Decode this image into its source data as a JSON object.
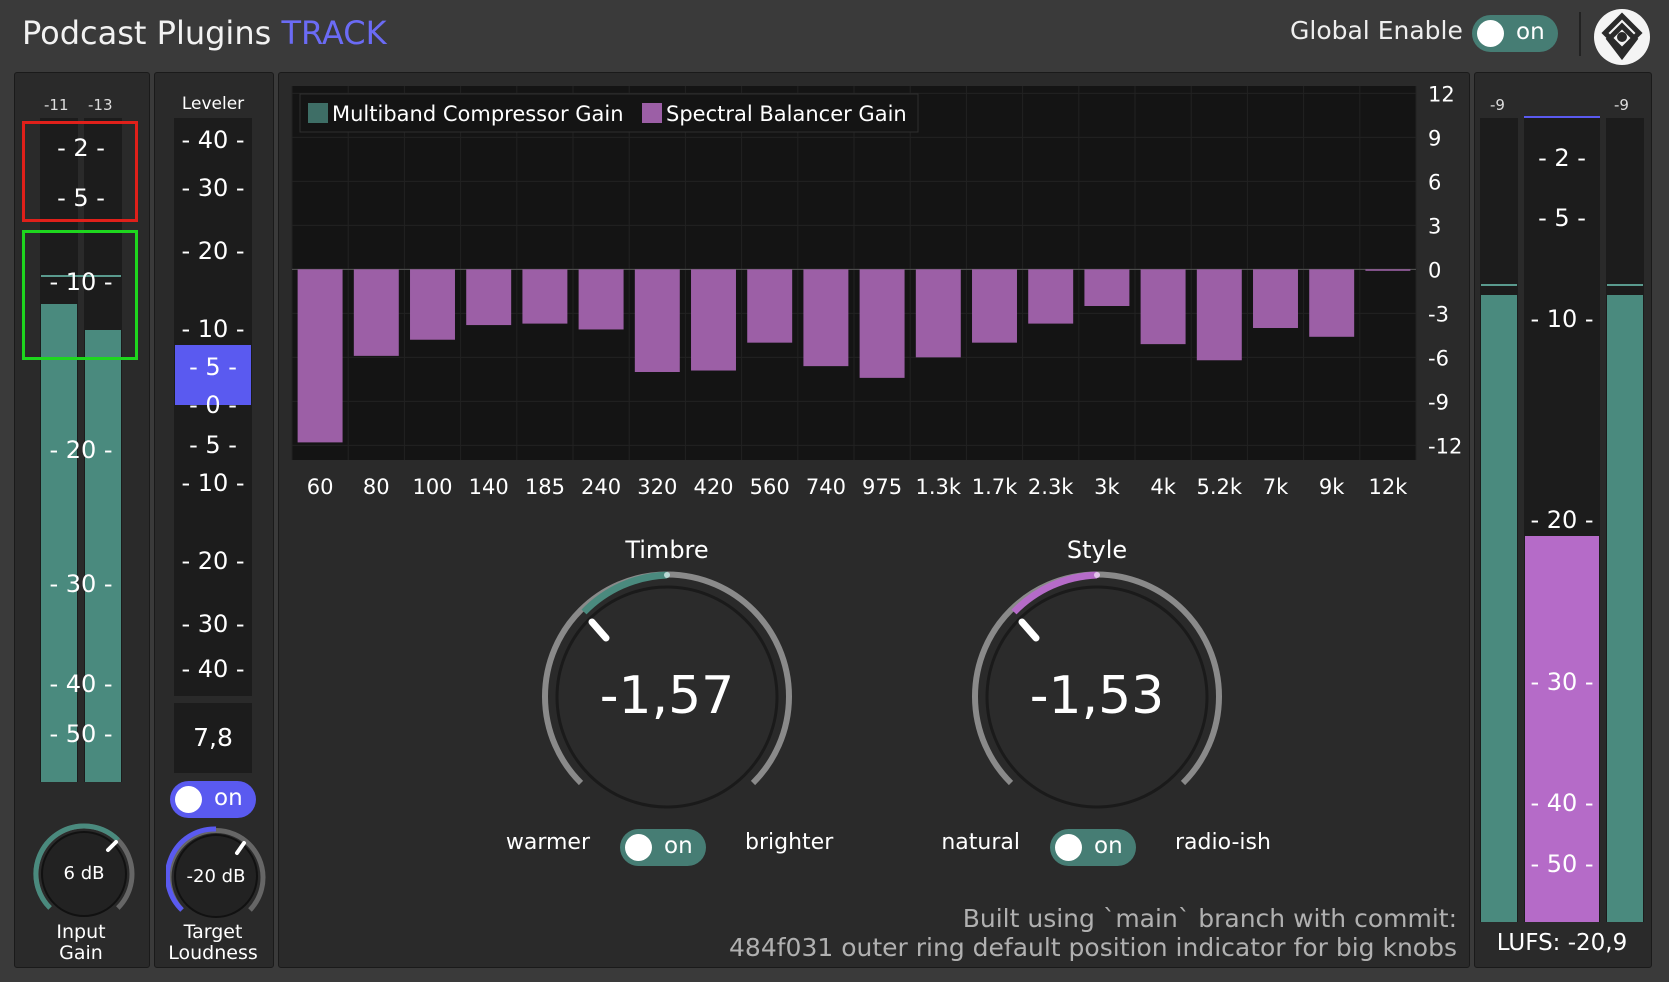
{
  "header": {
    "title_main": "Podcast Plugins ",
    "title_accent": "TRACK",
    "global_enable_label": "Global Enable",
    "global_enable_state": "on",
    "logo_icon": "podcast-plugins-logo-icon"
  },
  "input_meter": {
    "peak_left": "-11",
    "peak_right": "-13",
    "scale": [
      "- 2 -",
      "- 5 -",
      "- 10 -",
      "- 20 -",
      "- 30 -",
      "- 40 -",
      "- 50 -"
    ],
    "level_left": 0.72,
    "level_right": 0.68,
    "knob_value": "6 dB",
    "knob_label_1": "Input",
    "knob_label_2": "Gain"
  },
  "leveler": {
    "title": "Leveler",
    "scale": [
      "- 40 -",
      "- 30 -",
      "- 20 -",
      "- 10 -",
      "- 5 -",
      "- 0 -",
      "- 5 -",
      "- 10 -",
      "- 20 -",
      "- 30 -",
      "- 40 -"
    ],
    "value": "7,8",
    "toggle": "on",
    "knob_value": "-20 dB",
    "knob_label_1": "Target",
    "knob_label_2": "Loudness"
  },
  "chart_data": {
    "type": "bar",
    "categories": [
      "60",
      "80",
      "100",
      "140",
      "185",
      "240",
      "320",
      "420",
      "560",
      "740",
      "975",
      "1.3k",
      "1.7k",
      "2.3k",
      "3k",
      "4k",
      "5.2k",
      "7k",
      "9k",
      "12k"
    ],
    "series": [
      {
        "name": "Multiband Compressor Gain",
        "color": "#3e6e66",
        "values": [
          0,
          0,
          0,
          0,
          0,
          0,
          0,
          0,
          0,
          0,
          0,
          0,
          0,
          0,
          0,
          0,
          0,
          0,
          0,
          0
        ]
      },
      {
        "name": "Spectral Balancer Gain",
        "color": "#9c5fa6",
        "values": [
          -11.8,
          -5.9,
          -4.8,
          -3.8,
          -3.7,
          -4.1,
          -7.0,
          -6.9,
          -5.0,
          -6.6,
          -7.4,
          -6.0,
          -5.0,
          -3.7,
          -2.5,
          -5.1,
          -6.2,
          -4.0,
          -4.6,
          -0.1
        ]
      }
    ],
    "y_ticks": [
      "12",
      "9",
      "6",
      "3",
      "0",
      "-3",
      "-6",
      "-9",
      "-12"
    ],
    "ylim": [
      -13,
      12.5
    ],
    "grid": true,
    "legend_position": "top-left"
  },
  "timbre": {
    "title": "Timbre",
    "value": "-1,57",
    "left_label": "warmer",
    "right_label": "brighter",
    "toggle": "on",
    "accent": "#4a8a7e"
  },
  "style": {
    "title": "Style",
    "value": "-1,53",
    "left_label": "natural",
    "right_label": "radio-ish",
    "toggle": "on",
    "accent": "#b56bc8"
  },
  "footer": {
    "line1": "Built using `main` branch with commit:",
    "line2": "484f031 outer ring default position indicator for big knobs"
  },
  "output_meter": {
    "peak_left": "-9",
    "peak_right": "-9",
    "scale": [
      "- 2 -",
      "- 5 -",
      "- 10 -",
      "- 20 -",
      "- 30 -",
      "- 40 -",
      "- 50 -"
    ],
    "lufs_label": "LUFS: -20,9",
    "level_left": 0.78,
    "level_right": 0.78,
    "loudness_fill": 0.48
  },
  "colors": {
    "teal": "#4a8a7e",
    "purple": "#b56bc8",
    "blue": "#5a5af0",
    "red_bracket": "#e0201a",
    "green_bracket": "#1ed61e"
  }
}
